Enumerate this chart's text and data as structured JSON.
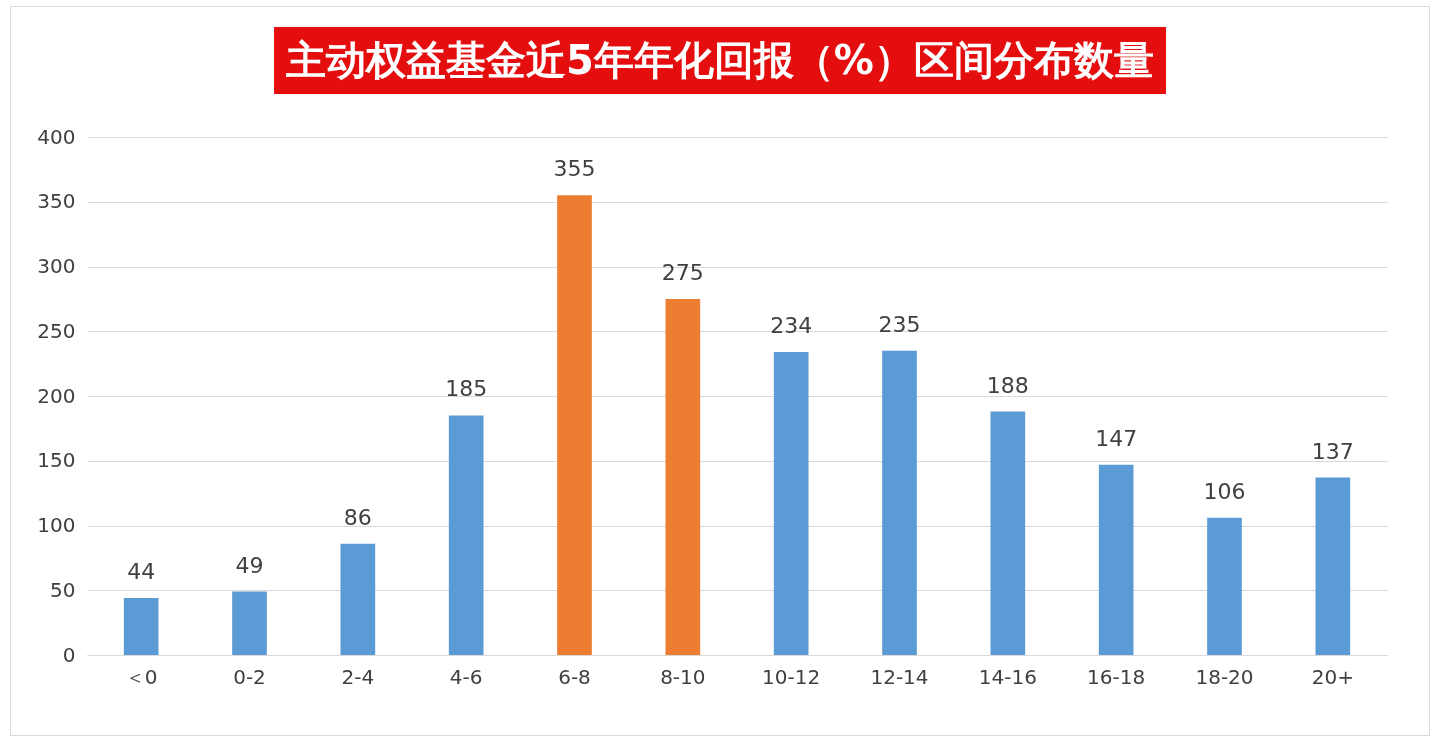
{
  "chart_data": {
    "type": "bar",
    "title": "主动权益基金近5年年化回报（%）区间分布数量",
    "categories": [
      "＜0",
      "0-2",
      "2-4",
      "4-6",
      "6-8",
      "8-10",
      "10-12",
      "12-14",
      "14-16",
      "16-18",
      "18-20",
      "20+"
    ],
    "values": [
      44,
      49,
      86,
      185,
      355,
      275,
      234,
      235,
      188,
      147,
      106,
      137
    ],
    "colors": [
      "#5b9bd5",
      "#5b9bd5",
      "#5b9bd5",
      "#5b9bd5",
      "#ed7d31",
      "#ed7d31",
      "#5b9bd5",
      "#5b9bd5",
      "#5b9bd5",
      "#5b9bd5",
      "#5b9bd5",
      "#5b9bd5"
    ],
    "ylim": [
      0,
      400
    ],
    "yticks": [
      0,
      50,
      100,
      150,
      200,
      250,
      300,
      350,
      400
    ],
    "grid": "y",
    "data_labels": true
  }
}
